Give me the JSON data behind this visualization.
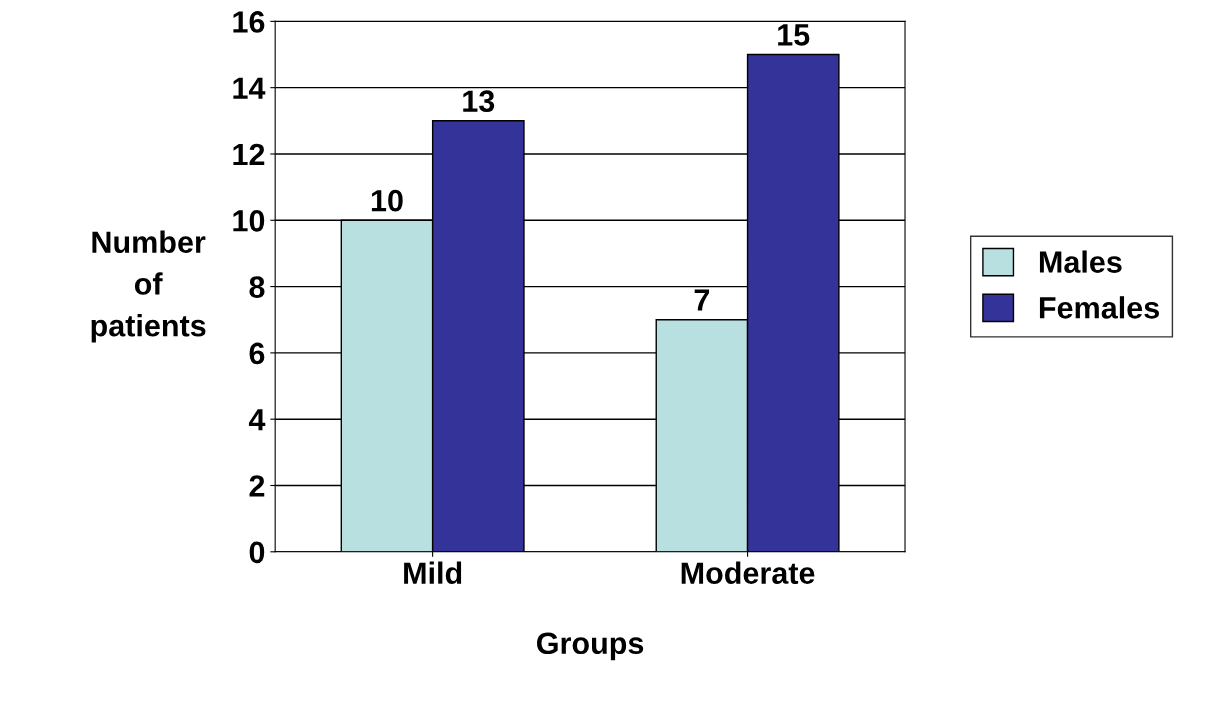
{
  "chart_data": {
    "type": "bar",
    "xlabel": "Groups",
    "ylabel": "Number of patients",
    "categories": [
      "Mild",
      "Moderate"
    ],
    "series": [
      {
        "name": "Males",
        "color": "#b8e0e0",
        "values": [
          10,
          7
        ]
      },
      {
        "name": "Females",
        "color": "#333399",
        "values": [
          13,
          15
        ]
      }
    ],
    "ylim": [
      0,
      16
    ],
    "yticks": [
      0,
      2,
      4,
      6,
      8,
      10,
      12,
      14,
      16
    ],
    "grid": "y",
    "legend": "right",
    "data_labels": true
  }
}
